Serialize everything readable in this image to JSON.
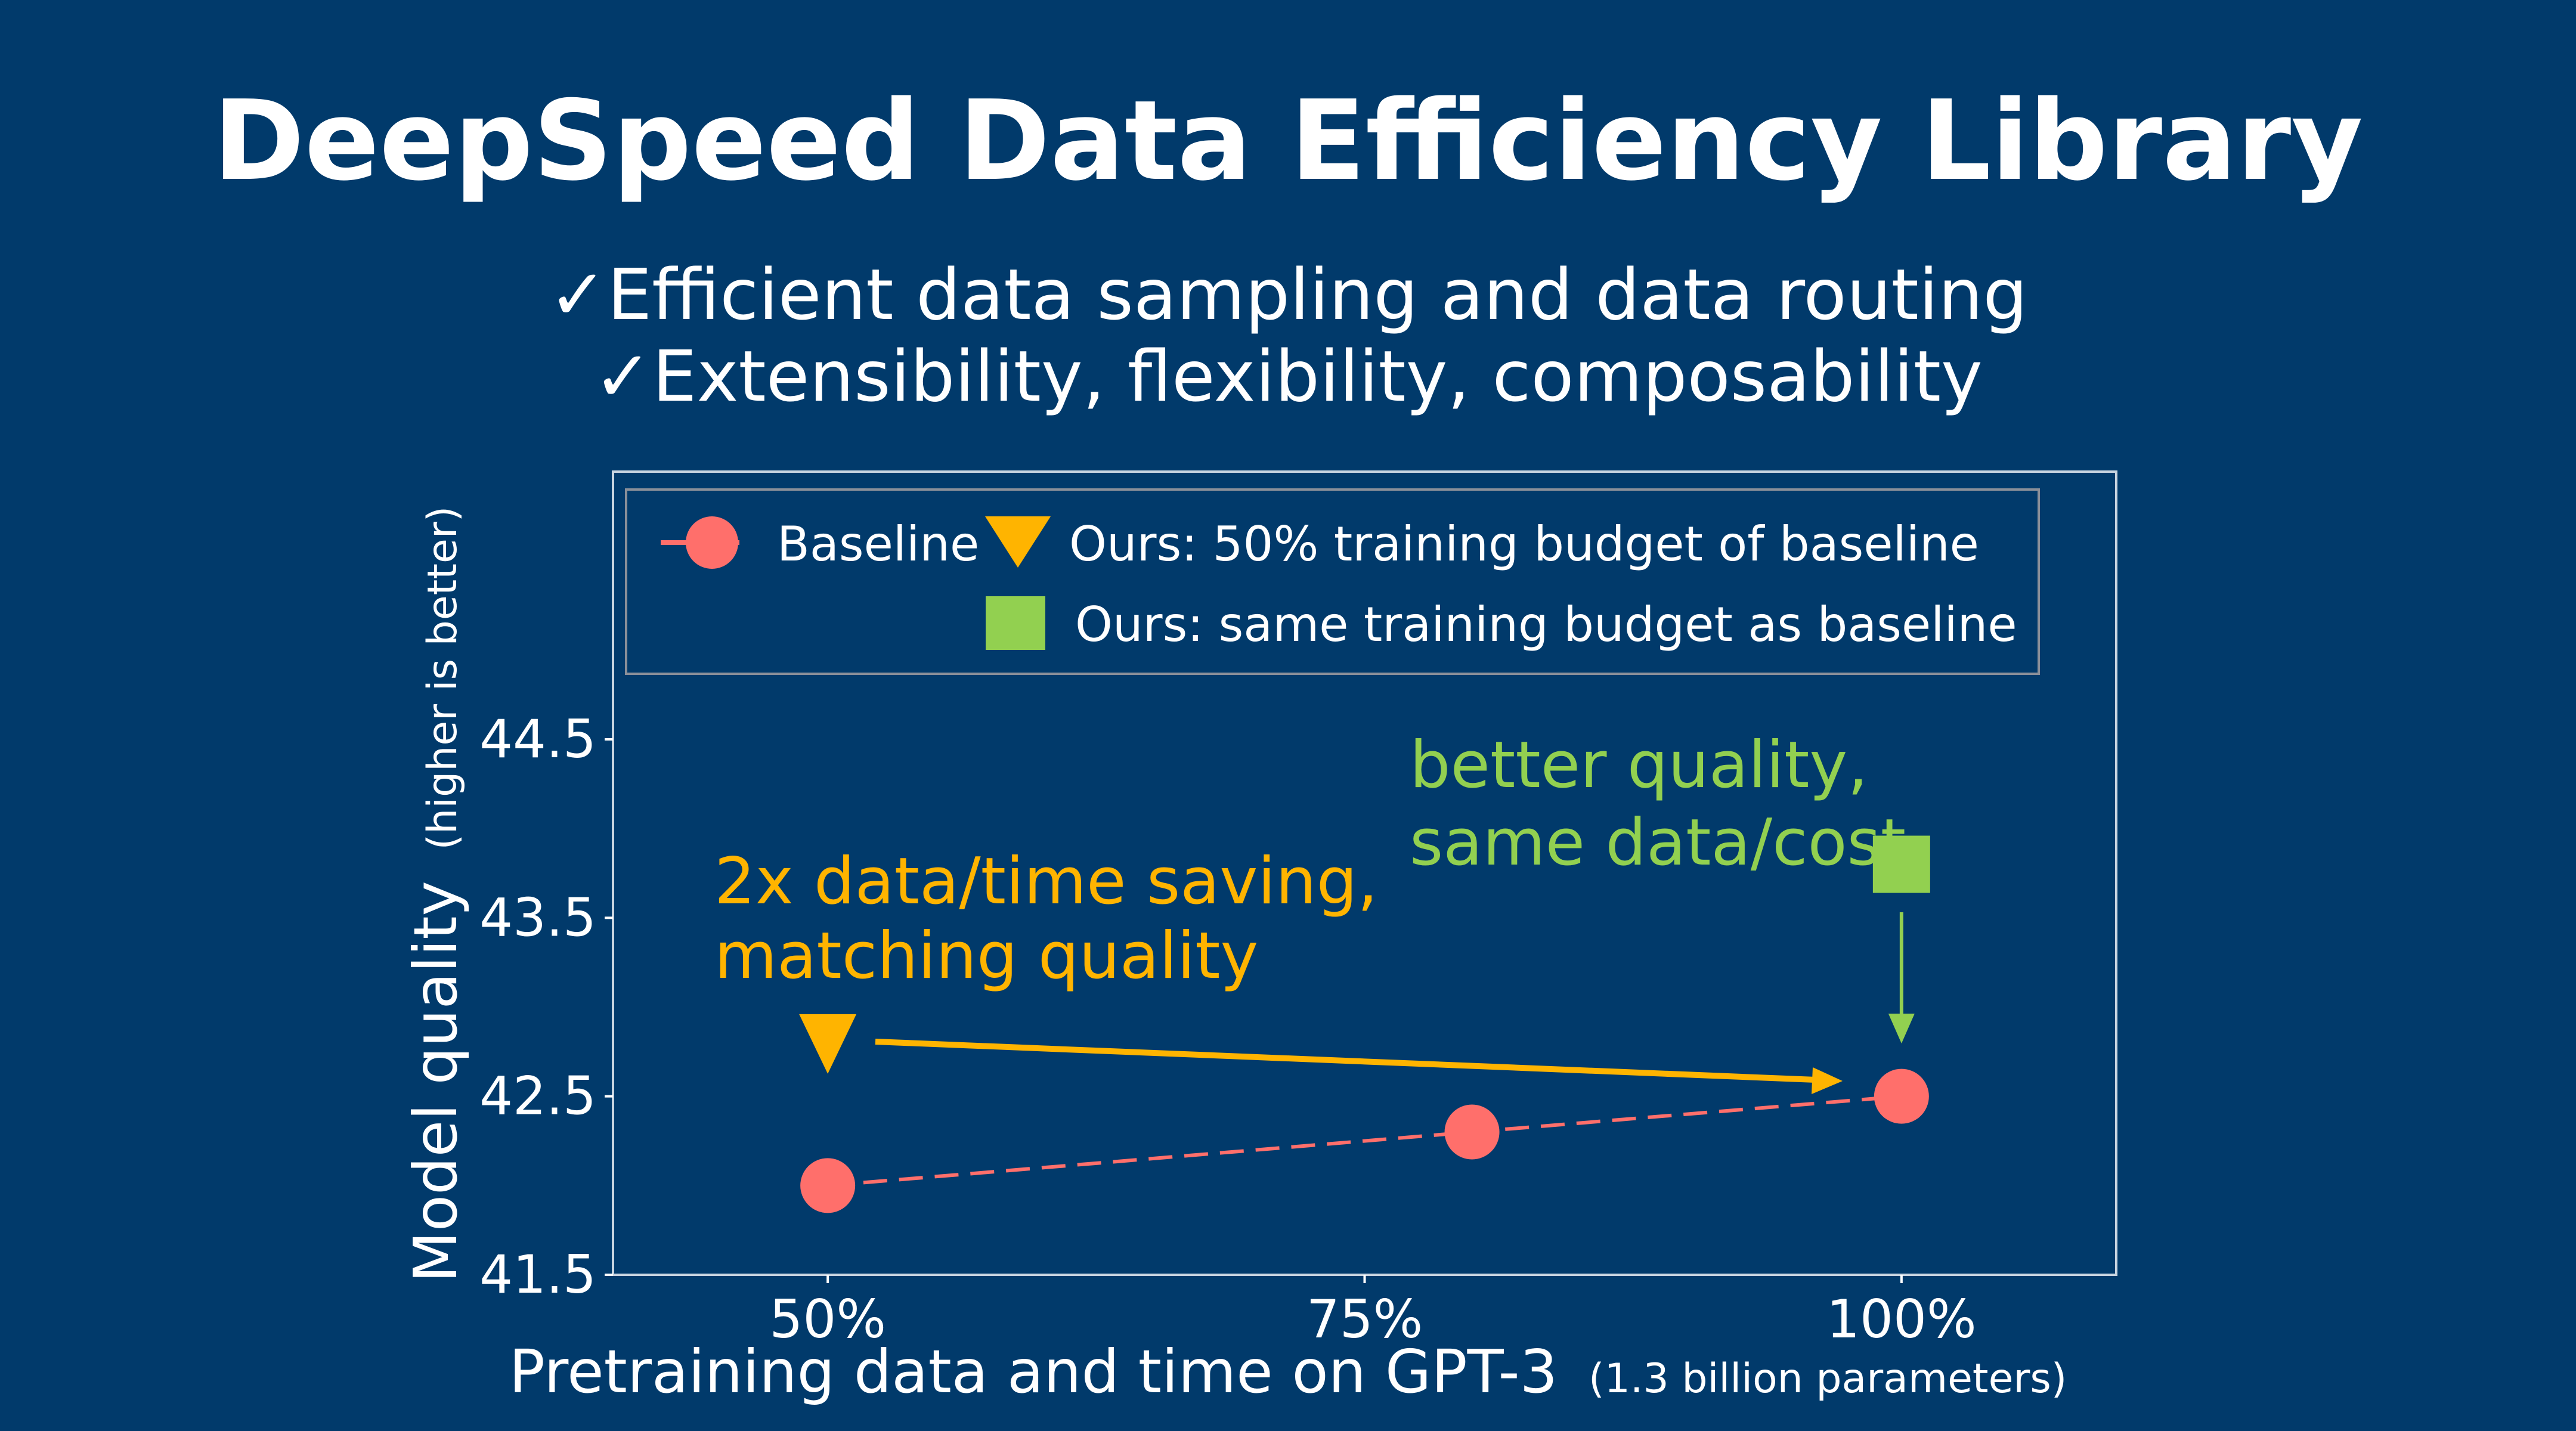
{
  "slide": {
    "title": "DeepSpeed Data Efficiency Library",
    "bullets": [
      "✓Efficient data sampling and data routing",
      "✓Extensibility, flexibility, composability"
    ]
  },
  "colors": {
    "background": "#013A6B",
    "baseline": "#FF6F6B",
    "ours_half": "#FFB400",
    "ours_same": "#92D050",
    "axis": "#FFFFFF",
    "legend_border": "#8A8F99"
  },
  "chart_data": {
    "type": "scatter",
    "xlabel": "Pretraining data and time on GPT-3",
    "xlabel_small": "(1.3 billion parameters)",
    "ylabel": "Model quality",
    "ylabel_small": "(higher is better)",
    "xlim": [
      40,
      110
    ],
    "ylim": [
      41.5,
      46.0
    ],
    "xticks": [
      50,
      75,
      100
    ],
    "xtick_labels": [
      "50%",
      "75%",
      "100%"
    ],
    "yticks": [
      41.5,
      42.5,
      43.5,
      44.5
    ],
    "ytick_labels": [
      "41.5",
      "42.5",
      "43.5",
      "44.5"
    ],
    "grid": false,
    "legend_placement": "top",
    "series": [
      {
        "name": "Baseline",
        "marker": "circle",
        "line": "dashed",
        "x": [
          50,
          80,
          100
        ],
        "y": [
          42.0,
          42.3,
          42.5
        ]
      },
      {
        "name": "Ours: 50% training budget of baseline",
        "marker": "triangle-down",
        "x": [
          50
        ],
        "y": [
          42.8
        ]
      },
      {
        "name": "Ours: same training budget as baseline",
        "marker": "square",
        "x": [
          100
        ],
        "y": [
          43.8
        ]
      }
    ],
    "annotations": [
      {
        "lines": [
          "2x data/time saving,",
          "matching quality"
        ],
        "color_key": "ours_half"
      },
      {
        "lines": [
          "better quality,",
          "same data/cost"
        ],
        "color_key": "ours_same"
      }
    ]
  }
}
